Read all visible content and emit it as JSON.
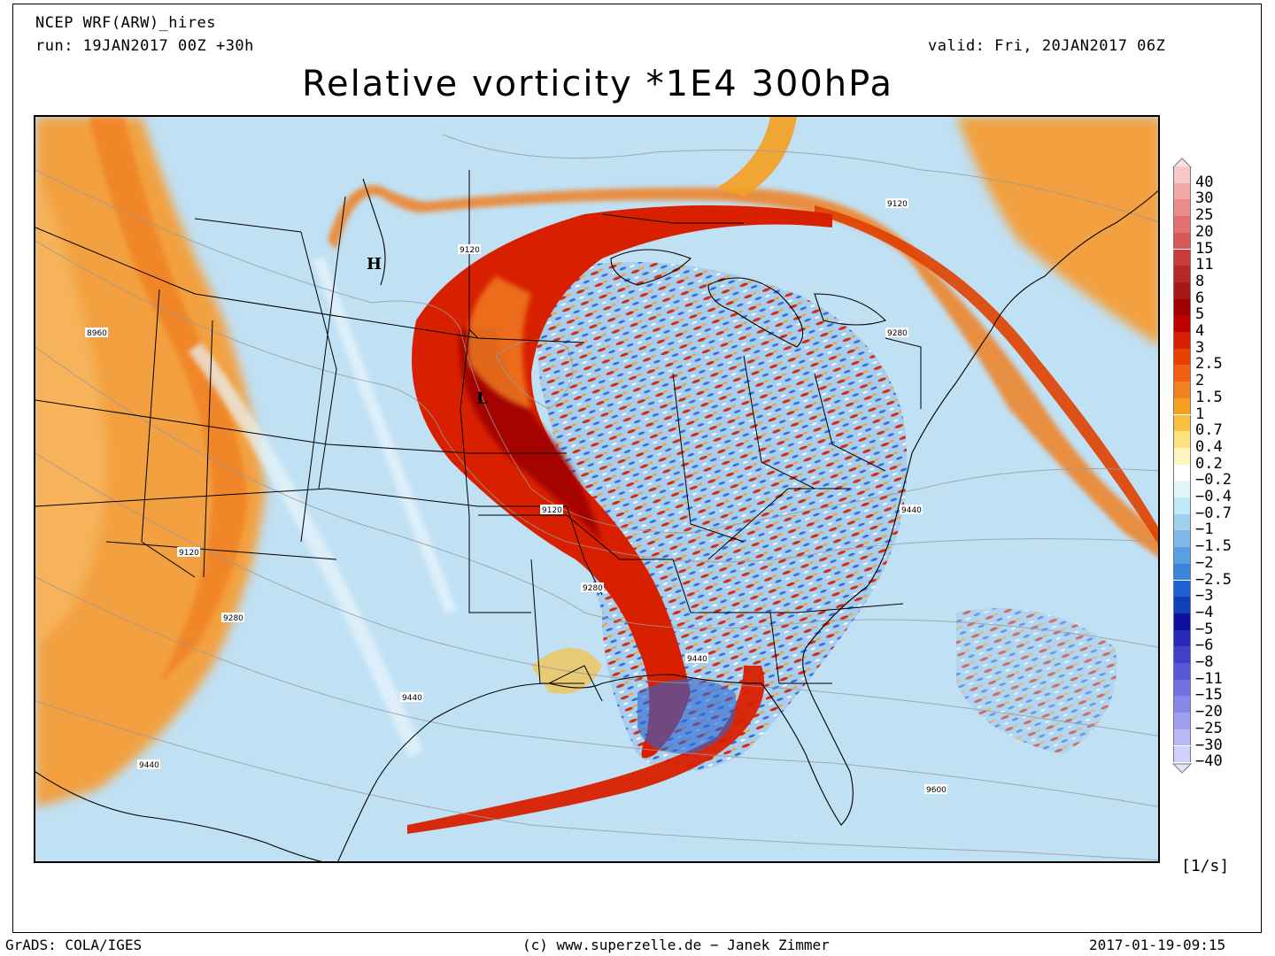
{
  "header": {
    "model": "NCEP WRF(ARW)_hires",
    "run": "run: 19JAN2017 00Z +30h",
    "valid": "valid: Fri, 20JAN2017 06Z"
  },
  "title": "Relative vorticity *1E4 300hPa",
  "map": {
    "pressure_centers": [
      {
        "label": "H"
      },
      {
        "label": "L"
      }
    ],
    "contour_labels": [
      "8960",
      "9120",
      "9120",
      "9120",
      "9120",
      "9280",
      "9280",
      "9280",
      "9440",
      "9440",
      "9440",
      "9440",
      "9600"
    ]
  },
  "legend": {
    "units": "[1/s]",
    "levels": [
      {
        "label": "40",
        "color": "#f8c8c8"
      },
      {
        "label": "30",
        "color": "#f2a8a8"
      },
      {
        "label": "25",
        "color": "#eb8c8c"
      },
      {
        "label": "20",
        "color": "#e37070"
      },
      {
        "label": "15",
        "color": "#d85858"
      },
      {
        "label": "11",
        "color": "#c83c3c"
      },
      {
        "label": "8",
        "color": "#b82828"
      },
      {
        "label": "6",
        "color": "#a81818"
      },
      {
        "label": "5",
        "color": "#a00000"
      },
      {
        "label": "4",
        "color": "#c00000"
      },
      {
        "label": "3",
        "color": "#d82000"
      },
      {
        "label": "2.5",
        "color": "#e84000"
      },
      {
        "label": "2",
        "color": "#f06010"
      },
      {
        "label": "1.5",
        "color": "#f08020"
      },
      {
        "label": "1",
        "color": "#f5a020"
      },
      {
        "label": "0.7",
        "color": "#fac040"
      },
      {
        "label": "0.4",
        "color": "#fde080"
      },
      {
        "label": "0.2",
        "color": "#fff5c0"
      },
      {
        "label": "−0.2",
        "color": "#ffffff"
      },
      {
        "label": "−0.4",
        "color": "#e0f6fb"
      },
      {
        "label": "−0.7",
        "color": "#c0e8f6"
      },
      {
        "label": "−1",
        "color": "#a0d0f0"
      },
      {
        "label": "−1.5",
        "color": "#80b8ea"
      },
      {
        "label": "−2",
        "color": "#5a9ee4"
      },
      {
        "label": "−2.5",
        "color": "#3a84de"
      },
      {
        "label": "−3",
        "color": "#2060d0"
      },
      {
        "label": "−4",
        "color": "#1040b8"
      },
      {
        "label": "−5",
        "color": "#1010a0"
      },
      {
        "label": "−6",
        "color": "#2828b8"
      },
      {
        "label": "−8",
        "color": "#4040c8"
      },
      {
        "label": "−11",
        "color": "#5858d8"
      },
      {
        "label": "−15",
        "color": "#7070e0"
      },
      {
        "label": "−20",
        "color": "#8888e8"
      },
      {
        "label": "−25",
        "color": "#a0a0f0"
      },
      {
        "label": "−30",
        "color": "#b8b8f5"
      },
      {
        "label": "−40",
        "color": "#d0d0fa"
      }
    ]
  },
  "footer": {
    "left": "GrADS: COLA/IGES",
    "center": "(c) www.superzelle.de − Janek Zimmer",
    "right": "2017-01-19-09:15"
  }
}
